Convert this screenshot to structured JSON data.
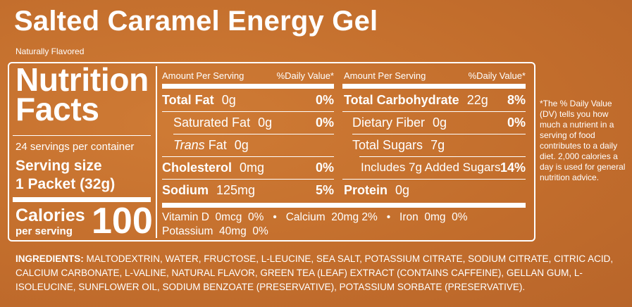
{
  "product": {
    "title": "Salted Caramel Energy Gel",
    "subtitle": "Naturally Flavored"
  },
  "facts": {
    "heading_line1": "Nutrition",
    "heading_line2": "Facts",
    "servings": "24 servings per container",
    "serving_size_label": "Serving size",
    "serving_size_value": "1 Packet (32g)",
    "calories_label": "Calories",
    "per_serving": "per serving",
    "calories_value": "100"
  },
  "left_col": {
    "amount_header": "Amount Per Serving",
    "dv_header": "%Daily Value*",
    "rows": [
      {
        "name": "Total Fat",
        "amount": "0g",
        "dv": "0%"
      },
      {
        "name": "Saturated Fat",
        "amount": "0g",
        "dv": "0%"
      },
      {
        "name_italic": "Trans",
        "name": "Fat",
        "amount": "0g",
        "dv": ""
      },
      {
        "name": "Cholesterol",
        "amount": "0mg",
        "dv": "0%"
      },
      {
        "name": "Sodium",
        "amount": "125mg",
        "dv": "5%"
      }
    ]
  },
  "right_col": {
    "amount_header": "Amount Per Serving",
    "dv_header": "%Daily Value*",
    "rows": [
      {
        "name": "Total Carbohydrate",
        "amount": "22g",
        "dv": "8%"
      },
      {
        "name": "Dietary Fiber",
        "amount": "0g",
        "dv": "0%"
      },
      {
        "name": "Total Sugars",
        "amount": "7g",
        "dv": ""
      },
      {
        "name": "Includes 7g Added Sugars",
        "amount": "",
        "dv": "14%"
      },
      {
        "name": "Protein",
        "amount": "0g",
        "dv": ""
      }
    ]
  },
  "vitamins": {
    "line1": "Vitamin D  0mcg  0%   •   Calcium  20mg 2%   •   Iron  0mg  0%",
    "line2": "Potassium  40mg  0%"
  },
  "footnote": "*The % Daily Value (DV) tells you how much a nutrient in a serving of food contributes to a daily diet. 2,000 calories a day is used for general nutrition advice.",
  "ingredients": {
    "label": "INGREDIENTS:",
    "text": "MALTODEXTRIN, WATER, FRUCTOSE, L-LEUCINE, SEA SALT, POTASSIUM CITRATE, SODIUM CITRATE, CITRIC ACID, CALCIUM CARBONATE, L-VALINE, NATURAL FLAVOR, GREEN TEA (LEAF) EXTRACT (CONTAINS CAFFEINE), GELLAN GUM, L-ISOLEUCINE, SUNFLOWER OIL, SODIUM BENZOATE (PRESERVATIVE), POTASSIUM SORBATE (PRESERVATIVE)."
  }
}
